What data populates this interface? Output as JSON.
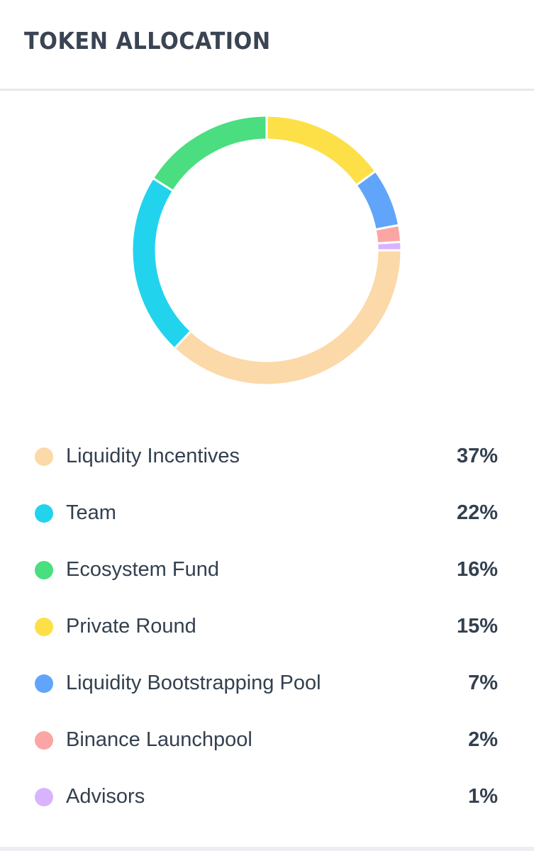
{
  "header": {
    "title": "TOKEN ALLOCATION"
  },
  "chart_data": {
    "type": "pie",
    "variant": "donut",
    "categories": [
      "Liquidity Incentives",
      "Team",
      "Ecosystem Fund",
      "Private Round",
      "Liquidity Bootstrapping Pool",
      "Binance Launchpool",
      "Advisors"
    ],
    "values": [
      37,
      22,
      16,
      15,
      7,
      2,
      1
    ],
    "value_labels": [
      "37%",
      "22%",
      "16%",
      "15%",
      "7%",
      "2%",
      "1%"
    ],
    "colors": [
      "#fcd9a8",
      "#22d3ee",
      "#4ade80",
      "#fde047",
      "#60a5fa",
      "#fca5a5",
      "#d8b4fe"
    ],
    "legend_placement": "bottom"
  }
}
